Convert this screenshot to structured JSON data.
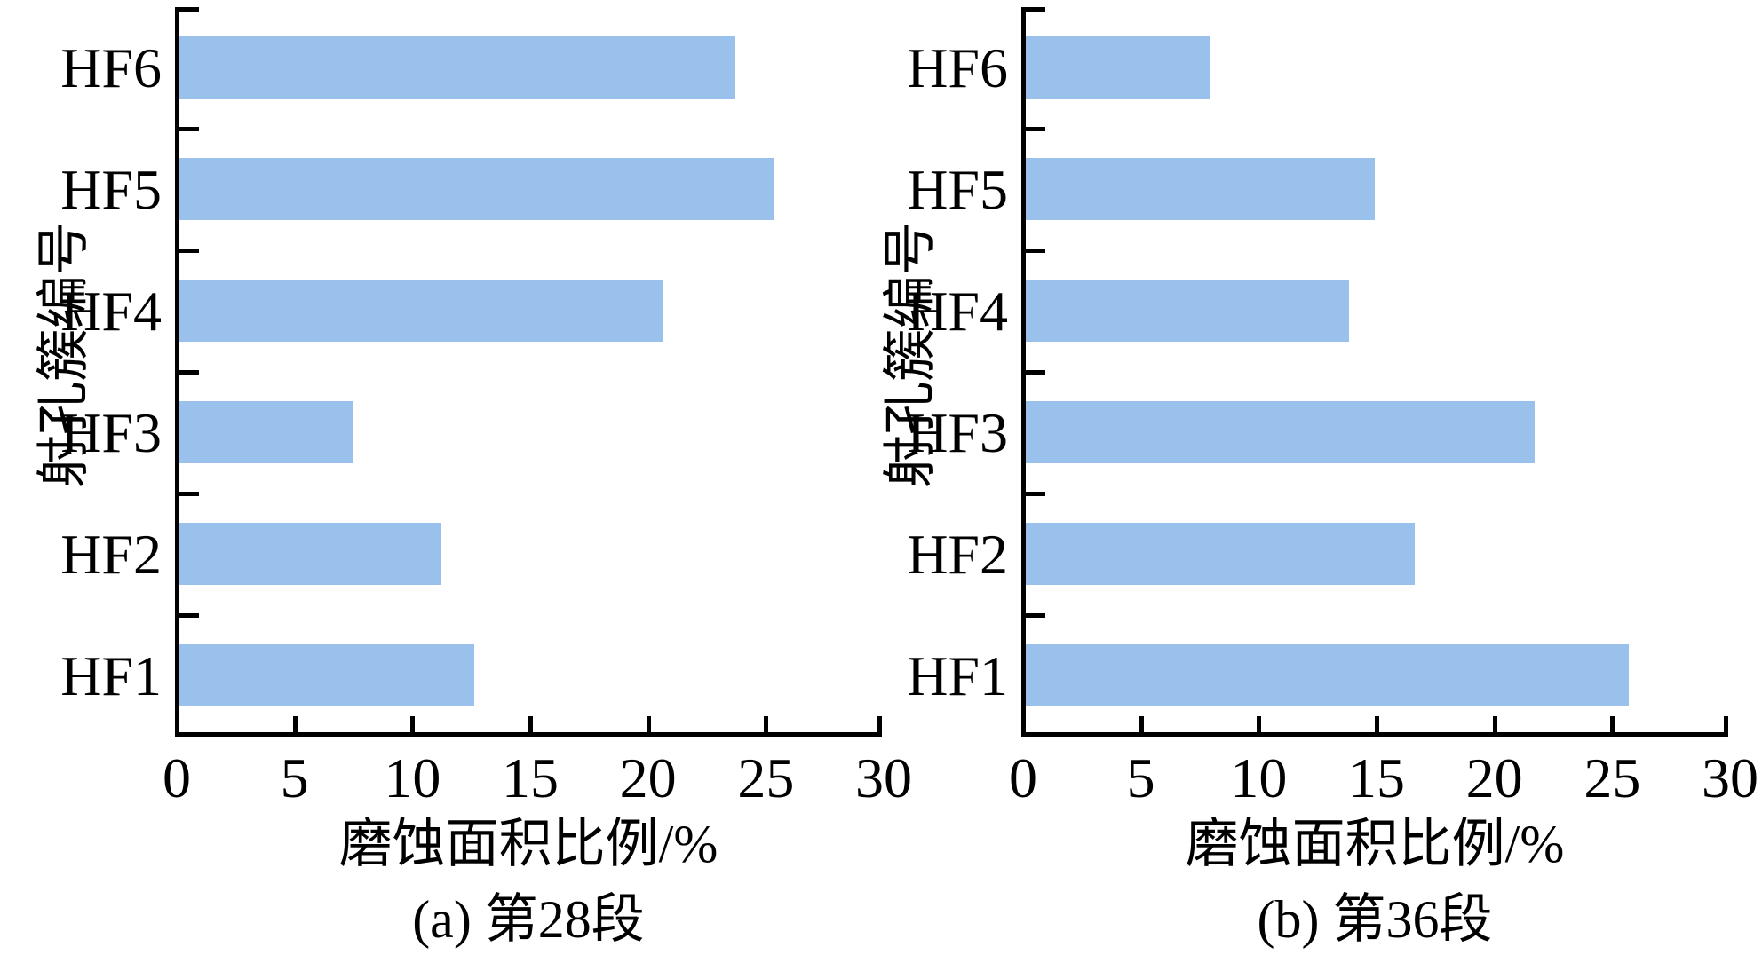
{
  "figure": {
    "background": "#ffffff"
  },
  "chart_data": [
    {
      "type": "bar",
      "orientation": "horizontal",
      "panel": "a",
      "title": "(a) 第28段",
      "xlabel": "磨蚀面积比例/%",
      "ylabel": "射孔簇编号",
      "categories": [
        "HF1",
        "HF2",
        "HF3",
        "HF4",
        "HF5",
        "HF6"
      ],
      "values": [
        12.5,
        11.1,
        7.4,
        20.5,
        25.2,
        23.6
      ],
      "xlim": [
        0,
        30
      ],
      "xticks": [
        0,
        5,
        10,
        15,
        20,
        25,
        30
      ],
      "bar_color": "#9AC0EC",
      "axis_color": "#000000",
      "grid": false,
      "legend": null
    },
    {
      "type": "bar",
      "orientation": "horizontal",
      "panel": "b",
      "title": "(b) 第36段",
      "xlabel": "磨蚀面积比例/%",
      "ylabel": "射孔簇编号",
      "categories": [
        "HF1",
        "HF2",
        "HF3",
        "HF4",
        "HF5",
        "HF6"
      ],
      "values": [
        25.6,
        16.5,
        21.6,
        13.7,
        14.8,
        7.8
      ],
      "xlim": [
        0,
        30
      ],
      "xticks": [
        0,
        5,
        10,
        15,
        20,
        25,
        30
      ],
      "bar_color": "#9AC0EC",
      "axis_color": "#000000",
      "grid": false,
      "legend": null
    }
  ]
}
